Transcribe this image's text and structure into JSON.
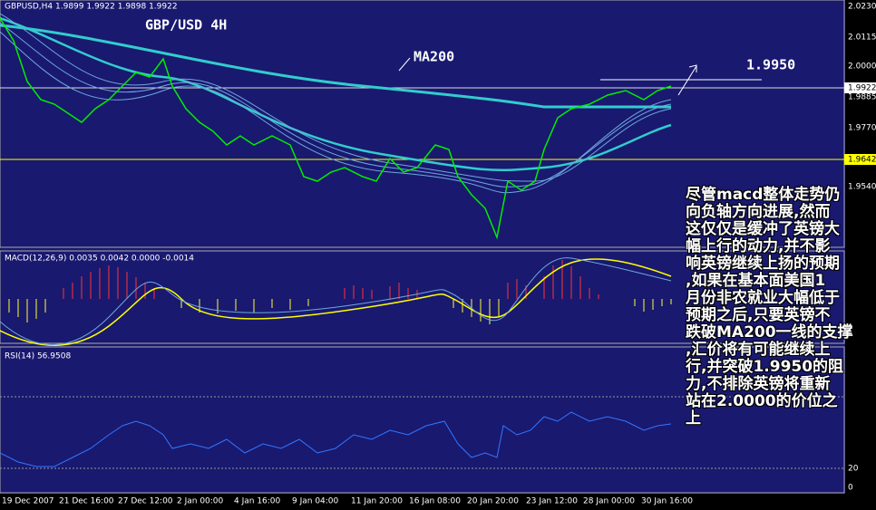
{
  "header": {
    "symbol": "GBPUSD,H4 1.9899 1.9922 1.9898 1.9922",
    "title": "GBP/USD 4H"
  },
  "annotations": {
    "ma": "MA200",
    "target": "1.9950"
  },
  "price_axis": [
    "2.0230",
    "2.0115",
    "2.0000",
    "1.9922",
    "1.9885",
    "1.9770",
    "1.9642",
    "1.9540"
  ],
  "macd_label": "MACD(12,26,9) 0.0035 0.0042 0.0000 -0.0014",
  "rsi_label": "RSI(14) 56.9508",
  "rsi_axis": [
    "20",
    "0"
  ],
  "dates": [
    "19 Dec 2007",
    "21 Dec 16:00",
    "27 Dec 12:00",
    "2 Jan 00:00",
    "4 Jan 16:00",
    "9 Jan 04:00",
    "11 Jan 20:00",
    "16 Jan 08:00",
    "20 Jan 20:00",
    "23 Jan 12:00",
    "28 Jan 00:00",
    "30 Jan 16:00"
  ],
  "note": [
    "尽管macd整体走势仍",
    "向负轴方向进展,然而",
    "这仅仅是缓冲了英镑大",
    "幅上行的动力,并不影",
    "响英镑继续上扬的预期",
    ",如果在基本面美国1",
    "月份非农就业大幅低于",
    "预期之后,只要英镑不",
    "跌破MA200一线的支撑",
    ",汇价将有可能继续上",
    "行,并突破1.9950的阻",
    "力,不排除英镑将重新",
    "站在2.0000的价位之",
    "上"
  ]
}
